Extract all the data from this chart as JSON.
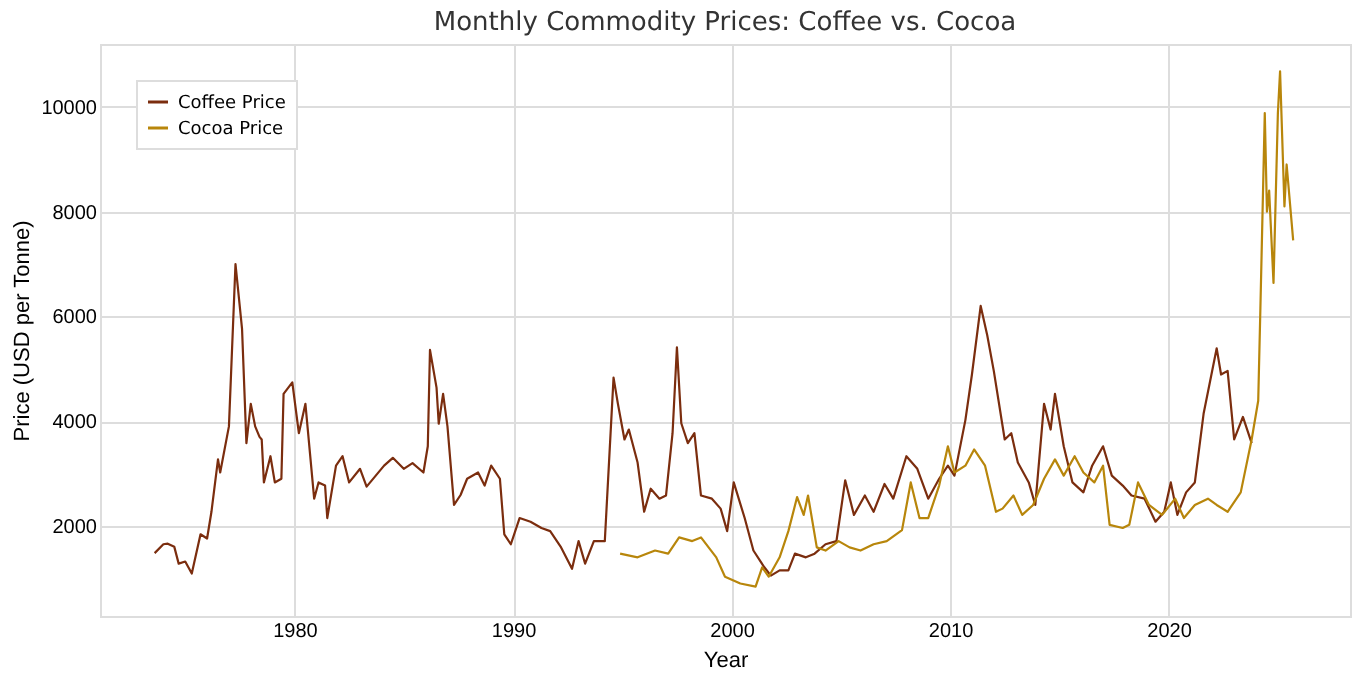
{
  "chart_data": {
    "type": "line",
    "title": "Monthly Commodity Prices: Coffee vs. Cocoa",
    "xlabel": "Year",
    "ylabel": "Price (USD per Tonne)",
    "xlim": [
      1971.1,
      2028.3
    ],
    "xticks": [
      1980,
      1990,
      2000,
      2010,
      2020
    ],
    "ylim": [
      280,
      11200
    ],
    "yticks": [
      2000,
      4000,
      6000,
      8000,
      10000
    ],
    "grid": true,
    "legend": "top left",
    "line_style": "solid",
    "marker": "none",
    "series": [
      {
        "name": "Coffee Price",
        "color": "#7b2d0e",
        "x": [
          1973.6,
          1974.0,
          1974.2,
          1974.5,
          1974.7,
          1975.0,
          1975.3,
          1975.7,
          1976.0,
          1976.2,
          1976.5,
          1976.6,
          1977.0,
          1977.3,
          1977.6,
          1977.8,
          1978.0,
          1978.2,
          1978.4,
          1978.5,
          1978.6,
          1978.9,
          1979.1,
          1979.4,
          1979.5,
          1979.9,
          1980.2,
          1980.5,
          1980.9,
          1981.1,
          1981.4,
          1981.5,
          1981.9,
          1982.2,
          1982.5,
          1983.0,
          1983.3,
          1984.1,
          1984.5,
          1985.0,
          1985.4,
          1985.9,
          1986.1,
          1986.2,
          1986.5,
          1986.6,
          1986.8,
          1987.0,
          1987.3,
          1987.6,
          1987.9,
          1988.4,
          1988.7,
          1989.0,
          1989.4,
          1989.6,
          1989.9,
          1990.3,
          1990.8,
          1991.3,
          1991.7,
          1992.2,
          1992.7,
          1993.0,
          1993.3,
          1993.7,
          1994.2,
          1994.6,
          1994.8,
          1995.1,
          1995.3,
          1995.7,
          1996.0,
          1996.3,
          1996.7,
          1997.0,
          1997.3,
          1997.5,
          1997.7,
          1998.0,
          1998.3,
          1998.6,
          1999.1,
          1999.5,
          1999.8,
          2000.1,
          2000.6,
          2001.0,
          2001.5,
          2001.8,
          2002.2,
          2002.6,
          2002.9,
          2003.4,
          2003.8,
          2004.3,
          2004.8,
          2005.2,
          2005.6,
          2006.1,
          2006.5,
          2007.0,
          2007.4,
          2008.0,
          2008.5,
          2009.0,
          2009.5,
          2009.9,
          2010.2,
          2010.7,
          2011.0,
          2011.4,
          2011.7,
          2012.0,
          2012.5,
          2012.8,
          2013.1,
          2013.6,
          2013.9,
          2014.3,
          2014.6,
          2014.8,
          2015.2,
          2015.6,
          2016.1,
          2016.5,
          2017.0,
          2017.4,
          2017.9,
          2018.3,
          2018.9,
          2019.4,
          2019.8,
          2020.1,
          2020.4,
          2020.8,
          2021.2,
          2021.6,
          2022.2,
          2022.4,
          2022.7,
          2023.0,
          2023.4,
          2023.8
        ],
        "values": [
          1480,
          1650,
          1660,
          1600,
          1280,
          1320,
          1090,
          1840,
          1760,
          2270,
          3270,
          3020,
          3900,
          7000,
          5760,
          3580,
          4330,
          3900,
          3700,
          3650,
          2830,
          3330,
          2830,
          2900,
          4520,
          4740,
          3770,
          4330,
          2520,
          2830,
          2770,
          2150,
          3150,
          3330,
          2830,
          3090,
          2750,
          3150,
          3300,
          3090,
          3200,
          3020,
          3520,
          5360,
          4640,
          3950,
          4520,
          3900,
          2400,
          2590,
          2900,
          3020,
          2770,
          3150,
          2900,
          1840,
          1650,
          2150,
          2080,
          1960,
          1900,
          1590,
          1180,
          1710,
          1280,
          1710,
          1710,
          4830,
          4330,
          3650,
          3840,
          3210,
          2270,
          2710,
          2520,
          2580,
          3770,
          5410,
          3960,
          3580,
          3770,
          2580,
          2520,
          2330,
          1900,
          2830,
          2150,
          1530,
          1210,
          1050,
          1150,
          1150,
          1470,
          1400,
          1470,
          1650,
          1710,
          2870,
          2210,
          2580,
          2270,
          2800,
          2520,
          3330,
          3090,
          2520,
          2900,
          3150,
          2960,
          4020,
          4890,
          6200,
          5640,
          4960,
          3650,
          3770,
          3210,
          2830,
          2400,
          4330,
          3840,
          4520,
          3520,
          2830,
          2640,
          3150,
          3520,
          2960,
          2770,
          2580,
          2520,
          2080,
          2270,
          2830,
          2210,
          2640,
          2830,
          4140,
          5390,
          4890,
          4960,
          3650,
          4080,
          3580
        ]
      },
      {
        "name": "Cocoa Price",
        "color": "#b8860b",
        "x": [
          1994.9,
          1995.7,
          1996.5,
          1997.1,
          1997.6,
          1998.2,
          1998.6,
          1999.3,
          1999.7,
          2000.4,
          2001.1,
          2001.4,
          2001.7,
          2002.2,
          2002.6,
          2003.0,
          2003.3,
          2003.5,
          2003.9,
          2004.3,
          2004.9,
          2005.4,
          2005.9,
          2006.5,
          2007.1,
          2007.8,
          2008.2,
          2008.6,
          2009.0,
          2009.5,
          2009.9,
          2010.2,
          2010.7,
          2011.1,
          2011.6,
          2012.1,
          2012.4,
          2012.9,
          2013.3,
          2013.8,
          2014.3,
          2014.8,
          2015.2,
          2015.7,
          2016.1,
          2016.6,
          2017.0,
          2017.3,
          2017.9,
          2018.2,
          2018.6,
          2019.1,
          2019.7,
          2020.3,
          2020.7,
          2021.2,
          2021.8,
          2022.2,
          2022.7,
          2023.3,
          2023.8,
          2024.1,
          2024.2,
          2024.4,
          2024.5,
          2024.6,
          2024.8,
          2025.0,
          2025.1,
          2025.3,
          2025.4,
          2025.7
        ],
        "values": [
          1470,
          1400,
          1530,
          1470,
          1780,
          1710,
          1780,
          1400,
          1030,
          900,
          840,
          1210,
          1030,
          1400,
          1900,
          2550,
          2210,
          2580,
          1590,
          1530,
          1710,
          1590,
          1530,
          1650,
          1710,
          1920,
          2830,
          2150,
          2150,
          2770,
          3520,
          3020,
          3150,
          3460,
          3150,
          2270,
          2330,
          2580,
          2210,
          2400,
          2900,
          3270,
          2960,
          3330,
          3020,
          2830,
          3150,
          2020,
          1960,
          2020,
          2830,
          2400,
          2210,
          2520,
          2150,
          2400,
          2520,
          2400,
          2270,
          2640,
          3650,
          4390,
          6160,
          9880,
          8000,
          8400,
          6640,
          9880,
          10680,
          8100,
          8900,
          7450
        ]
      }
    ]
  }
}
